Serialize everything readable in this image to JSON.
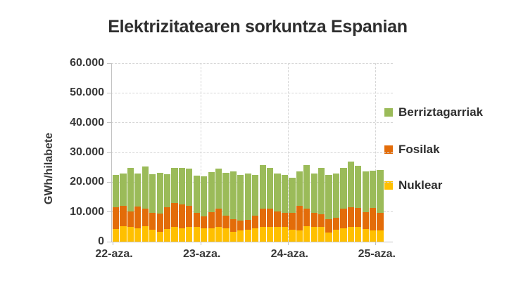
{
  "window": {
    "background": "#ffffff"
  },
  "chart_data": {
    "type": "bar",
    "subtype": "stacked-column",
    "title": "Elektrizitatearen sorkuntza Espanian",
    "ylabel": "GWh/hilabete",
    "xlabel": "",
    "ylim": [
      0,
      60000
    ],
    "y_tick_labels": [
      "60.000",
      "50.000",
      "40.000",
      "30.000",
      "20.000",
      "10.000",
      "0"
    ],
    "y_tick_values": [
      60000,
      50000,
      40000,
      30000,
      20000,
      10000,
      0
    ],
    "x_tick_labels": [
      "22-aza.",
      "23-aza.",
      "24-aza.",
      "25-aza."
    ],
    "grid": {
      "horizontal": "dashed",
      "vertical_at_day_marks": "dashed"
    },
    "legend_position": "right",
    "bar_count": 37,
    "bars_per_day": 12,
    "legend": [
      {
        "label": "Berriztagarriak",
        "color": "#9bbb59"
      },
      {
        "label": "Fosilak",
        "color": "#e36c09"
      },
      {
        "label": "Nuklear",
        "color": "#ffc000"
      }
    ],
    "series": [
      {
        "name": "Nuklear",
        "color": "#ffc000",
        "stack_order": 1,
        "values": [
          4300,
          5300,
          5000,
          4600,
          5300,
          4100,
          3300,
          4200,
          5000,
          4600,
          4900,
          4900,
          4600,
          4600,
          5000,
          4500,
          3300,
          3700,
          4100,
          4500,
          4900,
          5000,
          4900,
          5000,
          4100,
          3700,
          5300,
          4900,
          5000,
          3000,
          4100,
          4500,
          4900,
          4900,
          4200,
          3700,
          3700
        ]
      },
      {
        "name": "Fosilak",
        "color": "#e36c09",
        "stack_order": 2,
        "values": [
          7200,
          6700,
          5100,
          7200,
          5800,
          5700,
          6200,
          7400,
          8000,
          8000,
          7100,
          4900,
          3800,
          5400,
          6200,
          4300,
          4300,
          3300,
          3300,
          4300,
          6100,
          6200,
          5300,
          4600,
          5700,
          8300,
          5700,
          4700,
          4200,
          4600,
          3900,
          6700,
          6700,
          6500,
          5800,
          7700,
          6100
        ]
      },
      {
        "name": "Berriztagarriak",
        "color": "#9bbb59",
        "stack_order": 3,
        "values": [
          10900,
          11000,
          14600,
          11000,
          14100,
          12800,
          13600,
          11000,
          11800,
          12200,
          12600,
          12400,
          13600,
          13300,
          13300,
          14400,
          16000,
          15400,
          15400,
          13700,
          14700,
          13600,
          12600,
          12900,
          11800,
          11600,
          14700,
          13200,
          15700,
          14800,
          14800,
          13700,
          15400,
          14000,
          13600,
          12400,
          14300
        ]
      }
    ]
  }
}
